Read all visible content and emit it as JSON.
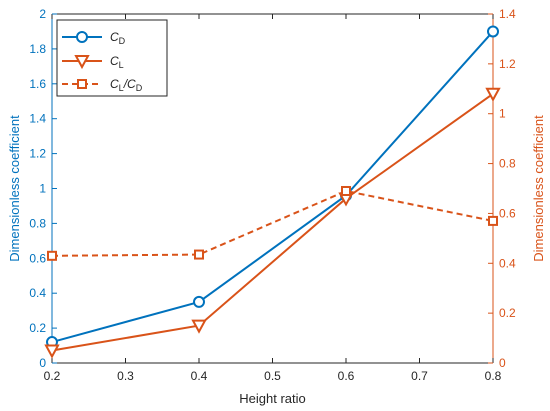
{
  "chart_data": {
    "type": "line",
    "x": [
      0.2,
      0.4,
      0.6,
      0.8
    ],
    "xlabel": "Height ratio",
    "ylabel_left": "Dimensionless coefficient",
    "ylabel_right": "Dimensionless coefficient",
    "xlim": [
      0.2,
      0.8
    ],
    "ylim_left": [
      0,
      2
    ],
    "ylim_right": [
      0,
      1.4
    ],
    "x_ticks": [
      "0.2",
      "0.3",
      "0.4",
      "0.5",
      "0.6",
      "0.7",
      "0.8"
    ],
    "y_ticks_left": [
      "0",
      "0.2",
      "0.4",
      "0.6",
      "0.8",
      "1",
      "1.2",
      "1.4",
      "1.6",
      "1.8",
      "2"
    ],
    "y_ticks_right": [
      "0",
      "0.2",
      "0.4",
      "0.6",
      "0.8",
      "1",
      "1.2",
      "1.4"
    ],
    "grid": false,
    "legend_position": "top-left",
    "series": [
      {
        "name": "C_D",
        "axis": "left",
        "values": [
          0.12,
          0.35,
          0.96,
          1.9
        ],
        "color": "#0072BD",
        "marker": "circle",
        "line": "solid"
      },
      {
        "name": "C_L",
        "axis": "right",
        "values": [
          0.05,
          0.15,
          0.66,
          1.08
        ],
        "color": "#D95319",
        "marker": "triangle-down",
        "line": "solid"
      },
      {
        "name": "C_L/C_D",
        "axis": "right",
        "values": [
          0.43,
          0.435,
          0.69,
          0.57
        ],
        "color": "#D95319",
        "marker": "square",
        "line": "dashed"
      }
    ]
  },
  "legend": {
    "cd": {
      "main": "C",
      "sub": "D"
    },
    "cl": {
      "main": "C",
      "sub": "L"
    },
    "ratio": {
      "main1": "C",
      "sub1": "L",
      "slash": "/",
      "main2": "C",
      "sub2": "D"
    }
  }
}
